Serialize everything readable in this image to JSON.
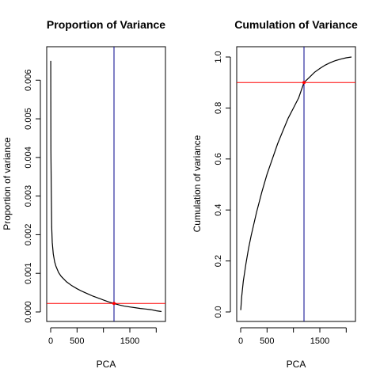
{
  "chart_data": [
    {
      "type": "line",
      "title": "Proportion of Variance",
      "xlabel": "PCA",
      "ylabel": "Proportion of variance",
      "xlim": [
        0,
        2150
      ],
      "ylim": [
        0,
        0.0066
      ],
      "x_ticks": [
        0,
        500,
        1500
      ],
      "x_tick_labels": [
        "0",
        "500",
        "1500"
      ],
      "y_ticks": [
        0.0,
        0.001,
        0.002,
        0.003,
        0.004,
        0.005,
        0.006
      ],
      "y_tick_labels": [
        "0.000",
        "0.001",
        "0.002",
        "0.003",
        "0.004",
        "0.005",
        "0.006"
      ],
      "grid": false,
      "series": [
        {
          "color": "#000000",
          "x": [
            1,
            5,
            10,
            20,
            30,
            50,
            75,
            100,
            150,
            200,
            300,
            400,
            500,
            600,
            700,
            800,
            900,
            1000,
            1100,
            1200,
            1300,
            1400,
            1500,
            1600,
            1700,
            1800,
            1900,
            2000,
            2100
          ],
          "y": [
            0.0065,
            0.0042,
            0.0033,
            0.0022,
            0.0018,
            0.0015,
            0.0013,
            0.00118,
            0.00102,
            0.00092,
            0.00078,
            0.00068,
            0.0006,
            0.00053,
            0.00047,
            0.00041,
            0.00036,
            0.00031,
            0.00026,
            0.00022,
            0.00018,
            0.00015,
            0.00013,
            0.00011,
            9e-05,
            7.5e-05,
            6e-05,
            3e-05,
            1e-05
          ]
        }
      ],
      "vline": {
        "x": 1200,
        "color": "#00008b"
      },
      "hline": {
        "y": 0.00022,
        "color": "#ff0000"
      },
      "marker": {
        "x": 1200,
        "y": 0.00022,
        "color": "#ff0000"
      }
    },
    {
      "type": "line",
      "title": "Cumulation of Variance",
      "xlabel": "PCA",
      "ylabel": "Cumulation of variance",
      "xlim": [
        0,
        2150
      ],
      "ylim": [
        0,
        1.0
      ],
      "x_ticks": [
        0,
        500,
        1500
      ],
      "x_tick_labels": [
        "0",
        "500",
        "1500"
      ],
      "y_ticks": [
        0.0,
        0.2,
        0.4,
        0.6,
        0.8,
        1.0
      ],
      "y_tick_labels": [
        "0.0",
        "0.2",
        "0.4",
        "0.6",
        "0.8",
        "1.0"
      ],
      "grid": false,
      "series": [
        {
          "color": "#000000",
          "x": [
            1,
            20,
            50,
            100,
            150,
            200,
            300,
            400,
            500,
            600,
            700,
            800,
            900,
            1000,
            1100,
            1200,
            1300,
            1400,
            1500,
            1600,
            1700,
            1800,
            1900,
            2000,
            2100
          ],
          "y": [
            0.007,
            0.06,
            0.12,
            0.19,
            0.25,
            0.3,
            0.39,
            0.47,
            0.54,
            0.6,
            0.66,
            0.71,
            0.76,
            0.8,
            0.84,
            0.9,
            0.92,
            0.94,
            0.955,
            0.968,
            0.978,
            0.986,
            0.992,
            0.997,
            1.0
          ]
        }
      ],
      "vline": {
        "x": 1200,
        "color": "#00008b"
      },
      "hline": {
        "y": 0.9,
        "color": "#ff0000"
      },
      "marker": {
        "x": 1200,
        "y": 0.9,
        "color": "#ff0000"
      }
    }
  ]
}
